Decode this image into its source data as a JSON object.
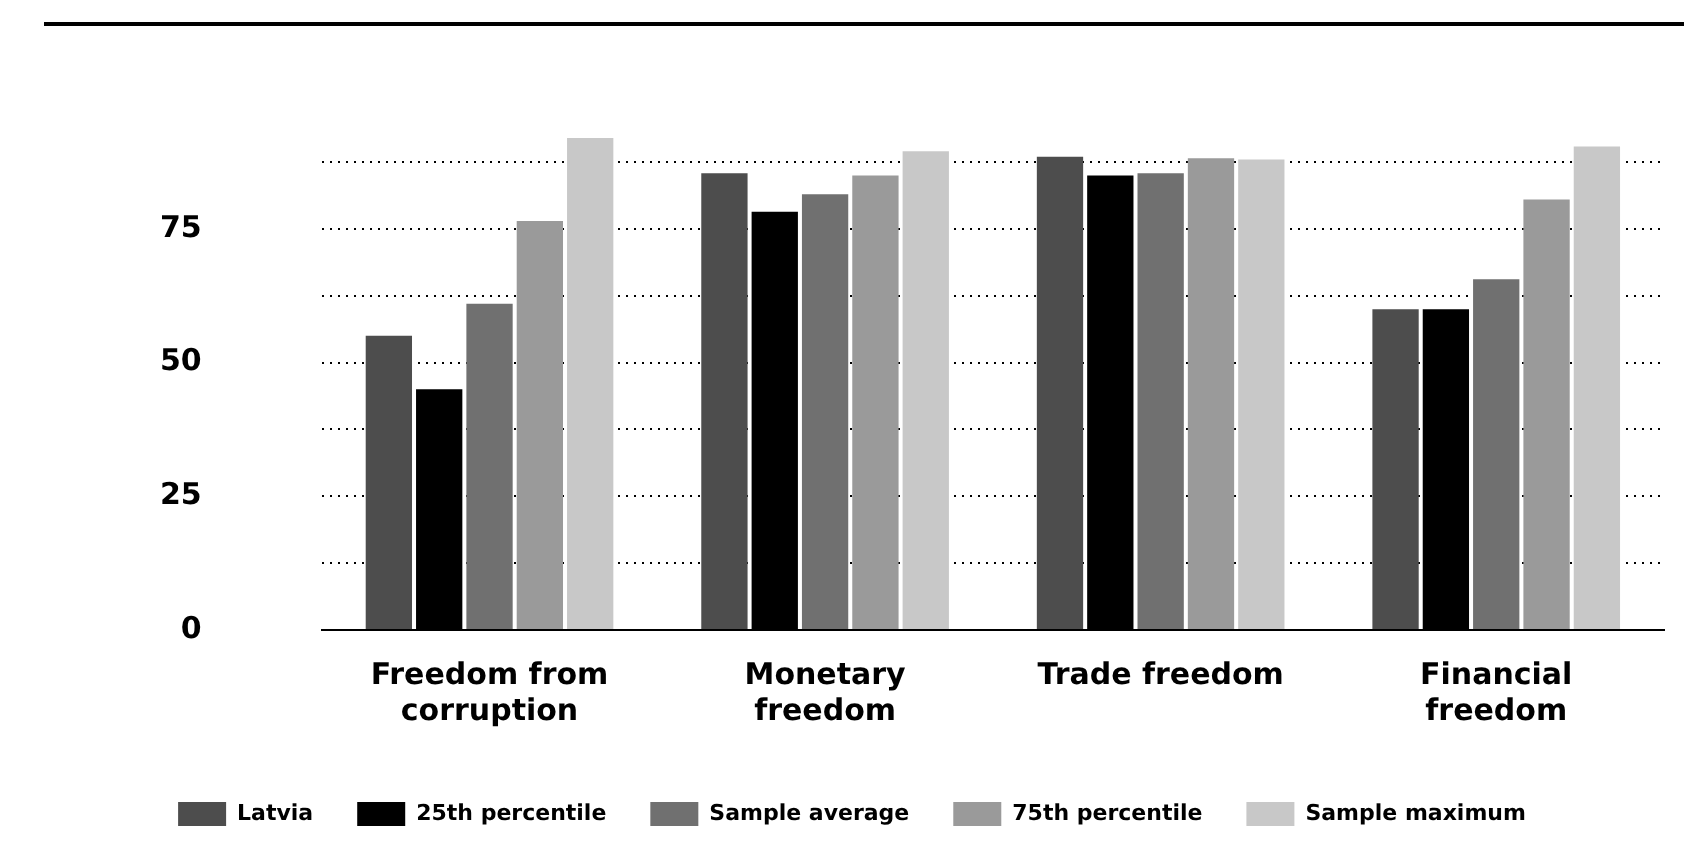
{
  "chart_data": {
    "type": "bar",
    "categories": [
      "Freedom from corruption",
      "Monetary freedom",
      "Trade freedom",
      "Financial freedom"
    ],
    "series": [
      {
        "name": "Latvia",
        "color": "#4d4d4d",
        "values": [
          55,
          85.4,
          88.5,
          60
        ]
      },
      {
        "name": "25th percentile",
        "color": "#000000",
        "values": [
          45,
          78.2,
          85,
          60
        ]
      },
      {
        "name": "Sample average",
        "color": "#707070",
        "values": [
          61,
          81.5,
          85.4,
          65.6
        ]
      },
      {
        "name": "75th percentile",
        "color": "#9a9a9a",
        "values": [
          76.5,
          85,
          88.2,
          80.5
        ]
      },
      {
        "name": "Sample maximum",
        "color": "#c8c8c8",
        "values": [
          92,
          89.5,
          88,
          90.4
        ]
      }
    ],
    "ylim": [
      0,
      92
    ],
    "yticks": [
      0,
      {
        "value": 12.5,
        "label": null
      },
      25,
      {
        "value": 37.5,
        "label": null
      },
      50,
      {
        "value": 62.5,
        "label": null
      },
      75,
      {
        "value": 87.5,
        "label": null
      }
    ],
    "grid": "y",
    "legend": "bottom"
  }
}
